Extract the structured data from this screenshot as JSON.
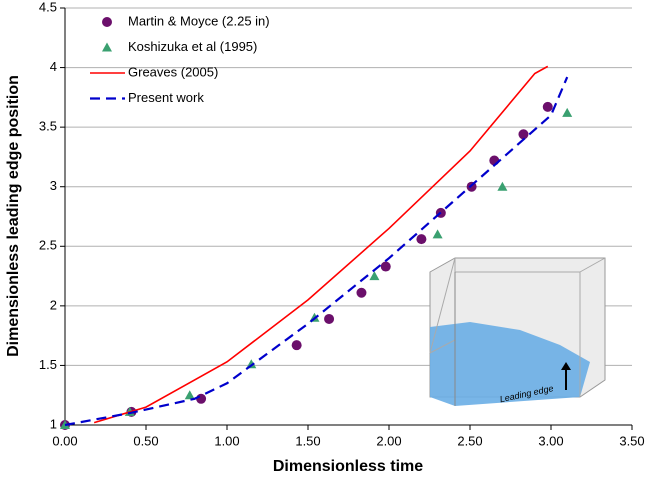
{
  "chart_data": {
    "type": "line",
    "x_label": "Dimensionless time",
    "y_label": "Dimensionless leading edge position",
    "annotation": "Leading edge",
    "xlim": [
      0,
      3.5
    ],
    "ylim": [
      1,
      4.5
    ],
    "xticks": [
      {
        "value": 0,
        "label": "0.00"
      },
      {
        "value": 0.5,
        "label": "0.50"
      },
      {
        "value": 1,
        "label": "1.00"
      },
      {
        "value": 1.5,
        "label": "1.50"
      },
      {
        "value": 2,
        "label": "2.00"
      },
      {
        "value": 2.5,
        "label": "2.50"
      },
      {
        "value": 3,
        "label": "3.00"
      },
      {
        "value": 3.5,
        "label": "3.50"
      }
    ],
    "yticks": [
      1,
      1.5,
      2,
      2.5,
      3,
      3.5,
      4,
      4.5
    ],
    "grid": true,
    "legend": "top-left",
    "series": [
      {
        "name": "Martin & Moyce (2.25 in)",
        "color": "#6b0f6b",
        "style": "circle",
        "x": [
          0,
          0.41,
          0.84,
          1.43,
          1.63,
          1.83,
          1.98,
          2.2,
          2.32,
          2.51,
          2.65,
          2.83,
          2.98
        ],
        "values": [
          1,
          1.11,
          1.22,
          1.67,
          1.89,
          2.11,
          2.33,
          2.56,
          2.78,
          3,
          3.22,
          3.44,
          3.67
        ]
      },
      {
        "name": "Koshizuka et al (1995)",
        "color": "#3aa070",
        "style": "triangle",
        "x": [
          0,
          0.4,
          0.77,
          1.15,
          1.54,
          1.91,
          2.3,
          2.7,
          3.1
        ],
        "values": [
          1,
          1.11,
          1.25,
          1.51,
          1.9,
          2.25,
          2.6,
          3.0,
          3.62
        ]
      },
      {
        "name": "Greaves (2005)",
        "color": "#ff0000",
        "style": "solid",
        "x": [
          0.18,
          0.5,
          1.0,
          1.5,
          2.0,
          2.5,
          2.9,
          2.98
        ],
        "values": [
          1.02,
          1.15,
          1.53,
          2.05,
          2.65,
          3.3,
          3.95,
          4.01
        ]
      },
      {
        "name": "Present work",
        "color": "#0000cc",
        "style": "dashed",
        "x": [
          0,
          0.4,
          0.8,
          1.0,
          1.5,
          2.0,
          2.5,
          3.0,
          3.1
        ],
        "values": [
          1,
          1.1,
          1.22,
          1.35,
          1.85,
          2.4,
          3.0,
          3.6,
          3.92
        ]
      }
    ]
  }
}
